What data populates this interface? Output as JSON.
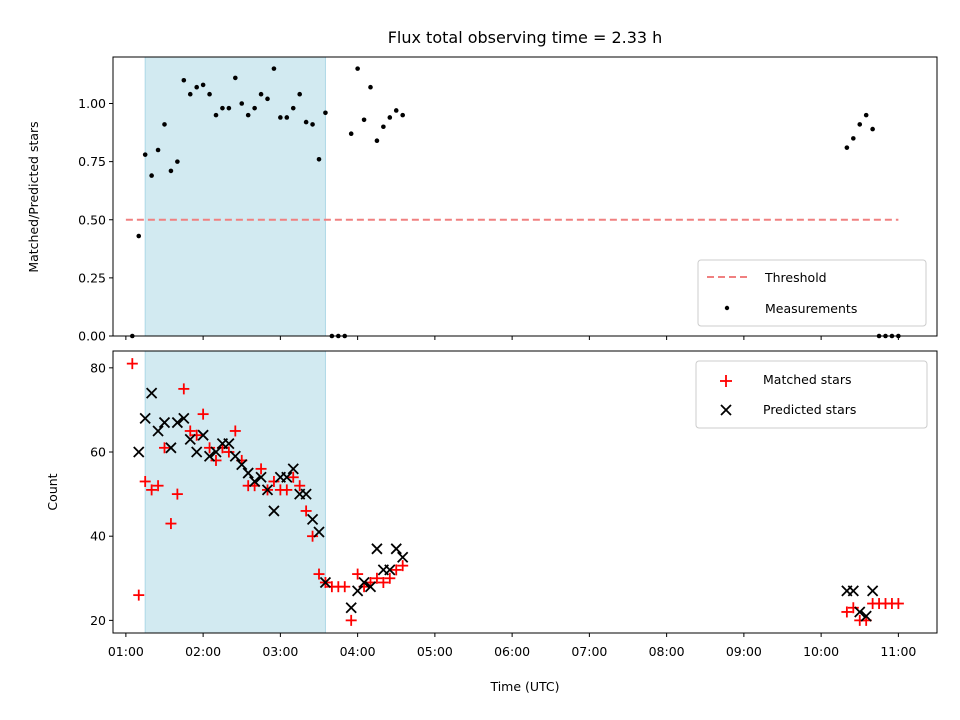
{
  "chart_data": [
    {
      "type": "scatter",
      "title": "Flux total observing time = 2.33 h",
      "ylabel": "Matched/Predicted stars",
      "ylim": [
        0,
        1.2
      ],
      "yticks": [
        "0.00",
        "0.25",
        "0.50",
        "0.75",
        "1.00"
      ],
      "xlim": [
        "00:50",
        "11:30"
      ],
      "shaded_interval": [
        "01:15",
        "03:35"
      ],
      "threshold": {
        "name": "Threshold",
        "value": 0.5,
        "x": [
          "01:00",
          "11:00"
        ],
        "color": "#f08080"
      },
      "legend_position": "lower-right",
      "series": [
        {
          "name": "Measurements",
          "color": "#000000",
          "points": [
            [
              "01:05",
              0.0
            ],
            [
              "01:10",
              0.43
            ],
            [
              "01:15",
              0.78
            ],
            [
              "01:20",
              0.69
            ],
            [
              "01:25",
              0.8
            ],
            [
              "01:30",
              0.91
            ],
            [
              "01:35",
              0.71
            ],
            [
              "01:40",
              0.75
            ],
            [
              "01:45",
              1.1
            ],
            [
              "01:50",
              1.04
            ],
            [
              "01:55",
              1.07
            ],
            [
              "02:00",
              1.08
            ],
            [
              "02:05",
              1.04
            ],
            [
              "02:10",
              0.95
            ],
            [
              "02:15",
              0.98
            ],
            [
              "02:20",
              0.98
            ],
            [
              "02:25",
              1.11
            ],
            [
              "02:30",
              1.0
            ],
            [
              "02:35",
              0.95
            ],
            [
              "02:40",
              0.98
            ],
            [
              "02:45",
              1.04
            ],
            [
              "02:50",
              1.02
            ],
            [
              "02:55",
              1.15
            ],
            [
              "03:00",
              0.94
            ],
            [
              "03:05",
              0.94
            ],
            [
              "03:10",
              0.98
            ],
            [
              "03:15",
              1.04
            ],
            [
              "03:20",
              0.92
            ],
            [
              "03:25",
              0.91
            ],
            [
              "03:30",
              0.76
            ],
            [
              "03:35",
              0.96
            ],
            [
              "03:40",
              0.0
            ],
            [
              "03:45",
              0.0
            ],
            [
              "03:50",
              0.0
            ],
            [
              "03:55",
              0.87
            ],
            [
              "04:00",
              1.15
            ],
            [
              "04:05",
              0.93
            ],
            [
              "04:10",
              1.07
            ],
            [
              "04:15",
              0.84
            ],
            [
              "04:20",
              0.9
            ],
            [
              "04:25",
              0.94
            ],
            [
              "04:30",
              0.97
            ],
            [
              "04:35",
              0.95
            ],
            [
              "10:20",
              0.81
            ],
            [
              "10:25",
              0.85
            ],
            [
              "10:30",
              0.91
            ],
            [
              "10:35",
              0.95
            ],
            [
              "10:40",
              0.89
            ],
            [
              "10:45",
              0.0
            ],
            [
              "10:50",
              0.0
            ],
            [
              "10:55",
              0.0
            ],
            [
              "11:00",
              0.0
            ]
          ]
        }
      ]
    },
    {
      "type": "scatter",
      "xlabel": "Time (UTC)",
      "ylabel": "Count",
      "ylim": [
        17,
        84
      ],
      "yticks": [
        "20",
        "40",
        "60",
        "80"
      ],
      "xlim": [
        "00:50",
        "11:30"
      ],
      "xticks": [
        "01:00",
        "02:00",
        "03:00",
        "04:00",
        "05:00",
        "06:00",
        "07:00",
        "08:00",
        "09:00",
        "10:00",
        "11:00"
      ],
      "shaded_interval": [
        "01:15",
        "03:35"
      ],
      "legend_position": "upper-right",
      "series": [
        {
          "name": "Matched stars",
          "marker": "+",
          "color": "#ff0000",
          "points": [
            [
              "01:05",
              81
            ],
            [
              "01:10",
              26
            ],
            [
              "01:15",
              53
            ],
            [
              "01:20",
              51
            ],
            [
              "01:25",
              52
            ],
            [
              "01:30",
              61
            ],
            [
              "01:35",
              43
            ],
            [
              "01:40",
              50
            ],
            [
              "01:45",
              75
            ],
            [
              "01:50",
              65
            ],
            [
              "01:55",
              64
            ],
            [
              "02:00",
              69
            ],
            [
              "02:05",
              61
            ],
            [
              "02:10",
              58
            ],
            [
              "02:15",
              61
            ],
            [
              "02:20",
              60
            ],
            [
              "02:25",
              65
            ],
            [
              "02:30",
              58
            ],
            [
              "02:35",
              52
            ],
            [
              "02:40",
              52
            ],
            [
              "02:45",
              56
            ],
            [
              "02:50",
              51
            ],
            [
              "02:55",
              53
            ],
            [
              "03:00",
              51
            ],
            [
              "03:05",
              51
            ],
            [
              "03:10",
              54
            ],
            [
              "03:15",
              52
            ],
            [
              "03:20",
              46
            ],
            [
              "03:25",
              40
            ],
            [
              "03:30",
              31
            ],
            [
              "03:35",
              29
            ],
            [
              "03:40",
              28
            ],
            [
              "03:45",
              28
            ],
            [
              "03:50",
              28
            ],
            [
              "03:55",
              20
            ],
            [
              "04:00",
              31
            ],
            [
              "04:05",
              28
            ],
            [
              "04:10",
              29
            ],
            [
              "04:15",
              30
            ],
            [
              "04:20",
              29
            ],
            [
              "04:25",
              30
            ],
            [
              "04:30",
              32
            ],
            [
              "04:35",
              33
            ],
            [
              "10:20",
              22
            ],
            [
              "10:25",
              23
            ],
            [
              "10:30",
              20
            ],
            [
              "10:35",
              20
            ],
            [
              "10:40",
              24
            ],
            [
              "10:45",
              24
            ],
            [
              "10:50",
              24
            ],
            [
              "10:55",
              24
            ],
            [
              "11:00",
              24
            ]
          ]
        },
        {
          "name": "Predicted stars",
          "marker": "x",
          "color": "#000000",
          "points": [
            [
              "01:10",
              60
            ],
            [
              "01:15",
              68
            ],
            [
              "01:20",
              74
            ],
            [
              "01:25",
              65
            ],
            [
              "01:30",
              67
            ],
            [
              "01:35",
              61
            ],
            [
              "01:40",
              67
            ],
            [
              "01:45",
              68
            ],
            [
              "01:50",
              63
            ],
            [
              "01:55",
              60
            ],
            [
              "02:00",
              64
            ],
            [
              "02:05",
              59
            ],
            [
              "02:10",
              60
            ],
            [
              "02:15",
              62
            ],
            [
              "02:20",
              62
            ],
            [
              "02:25",
              59
            ],
            [
              "02:30",
              57
            ],
            [
              "02:35",
              55
            ],
            [
              "02:40",
              53
            ],
            [
              "02:45",
              54
            ],
            [
              "02:50",
              51
            ],
            [
              "02:55",
              46
            ],
            [
              "03:00",
              54
            ],
            [
              "03:05",
              54
            ],
            [
              "03:10",
              56
            ],
            [
              "03:15",
              50
            ],
            [
              "03:20",
              50
            ],
            [
              "03:25",
              44
            ],
            [
              "03:30",
              41
            ],
            [
              "03:35",
              29
            ],
            [
              "03:55",
              23
            ],
            [
              "04:00",
              27
            ],
            [
              "04:05",
              29
            ],
            [
              "04:10",
              28
            ],
            [
              "04:15",
              37
            ],
            [
              "04:20",
              32
            ],
            [
              "04:25",
              32
            ],
            [
              "04:30",
              37
            ],
            [
              "04:35",
              35
            ],
            [
              "10:20",
              27
            ],
            [
              "10:25",
              27
            ],
            [
              "10:30",
              22
            ],
            [
              "10:35",
              21
            ],
            [
              "10:40",
              27
            ]
          ]
        }
      ]
    }
  ],
  "colors": {
    "shade": "#add8e6",
    "threshold": "#f08080",
    "matched": "#ff0000",
    "predicted": "#000000",
    "measurements": "#000000"
  }
}
